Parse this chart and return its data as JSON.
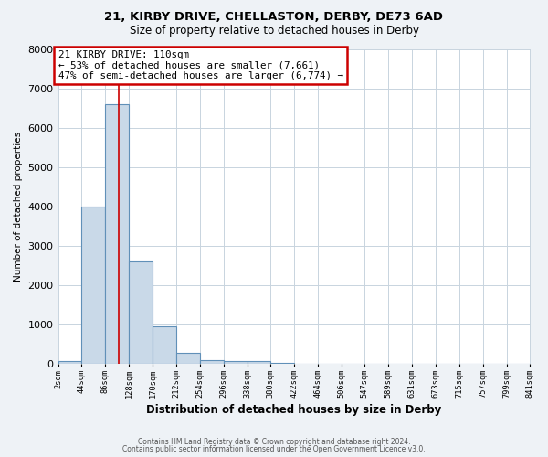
{
  "title1": "21, KIRBY DRIVE, CHELLASTON, DERBY, DE73 6AD",
  "title2": "Size of property relative to detached houses in Derby",
  "xlabel": "Distribution of detached houses by size in Derby",
  "ylabel": "Number of detached properties",
  "bar_values": [
    70,
    4000,
    6600,
    2600,
    950,
    270,
    100,
    60,
    60,
    30,
    0,
    0,
    0,
    0,
    0,
    0,
    0,
    0,
    0,
    0
  ],
  "bin_edges": [
    2,
    44,
    86,
    128,
    170,
    212,
    254,
    296,
    338,
    380,
    422,
    464,
    506,
    547,
    589,
    631,
    673,
    715,
    757,
    799,
    841
  ],
  "x_tick_labels": [
    "2sqm",
    "44sqm",
    "86sqm",
    "128sqm",
    "170sqm",
    "212sqm",
    "254sqm",
    "296sqm",
    "338sqm",
    "380sqm",
    "422sqm",
    "464sqm",
    "506sqm",
    "547sqm",
    "589sqm",
    "631sqm",
    "673sqm",
    "715sqm",
    "757sqm",
    "799sqm",
    "841sqm"
  ],
  "bar_color": "#c9d9e8",
  "bar_edgecolor": "#6090b8",
  "redline_color": "#cc0000",
  "redline_x": 110,
  "ylim": [
    0,
    8000
  ],
  "yticks": [
    0,
    1000,
    2000,
    3000,
    4000,
    5000,
    6000,
    7000,
    8000
  ],
  "annotation_title": "21 KIRBY DRIVE: 110sqm",
  "annotation_line1": "← 53% of detached houses are smaller (7,661)",
  "annotation_line2": "47% of semi-detached houses are larger (6,774) →",
  "annotation_box_color": "#cc0000",
  "footer1": "Contains HM Land Registry data © Crown copyright and database right 2024.",
  "footer2": "Contains public sector information licensed under the Open Government Licence v3.0.",
  "bg_color": "#eef2f6",
  "plot_bg_color": "#ffffff",
  "grid_color": "#c8d4de"
}
